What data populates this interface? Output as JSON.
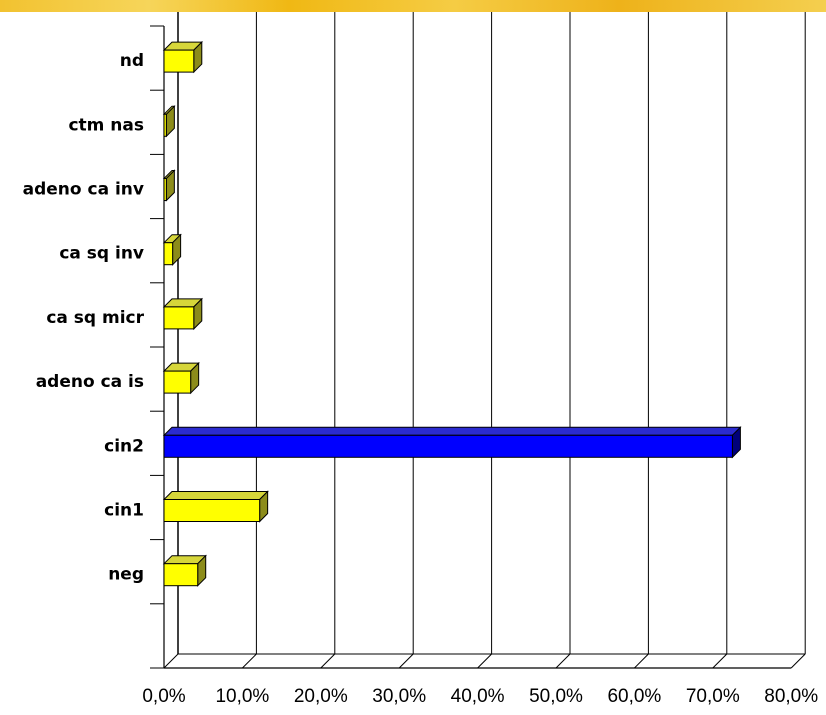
{
  "chart_data": {
    "type": "bar",
    "orientation": "horizontal",
    "style": "3d",
    "categories": [
      "neg",
      "cin1",
      "cin2",
      "adeno ca is",
      "ca sq micr",
      "ca sq inv",
      "adeno ca inv",
      "ctm nas",
      "nd"
    ],
    "values": [
      4.3,
      12.2,
      72.5,
      3.4,
      3.8,
      1.1,
      0.3,
      0.3,
      3.8
    ],
    "highlight_category": "cin2",
    "xlim": [
      0,
      80
    ],
    "x_ticks": [
      "0,0%",
      "10,0%",
      "20,0%",
      "30,0%",
      "40,0%",
      "50,0%",
      "60,0%",
      "70,0%",
      "80,0%"
    ],
    "grid": true,
    "legend": "none",
    "colors": {
      "bar_face": "#ffff00",
      "bar_top": "#d6d63a",
      "bar_side": "#8c8c1a",
      "highlight_face": "#0000ff",
      "highlight_top": "#2b2bd0",
      "highlight_side": "#00007a",
      "grid": "#000000",
      "top_strip": "#f2c230"
    }
  }
}
